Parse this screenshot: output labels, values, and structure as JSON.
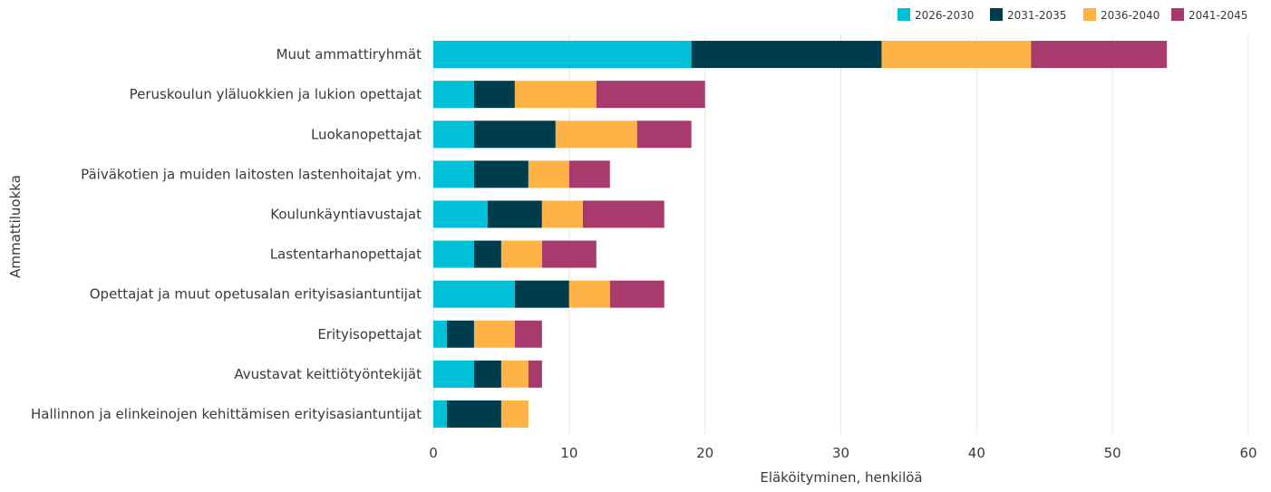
{
  "chart_data": {
    "type": "bar",
    "orientation": "horizontal",
    "stacked": true,
    "title": "",
    "xlabel": "Eläköityminen, henkilöä",
    "ylabel": "Ammattiluokka",
    "xlim": [
      0,
      60
    ],
    "xticks": [
      0,
      10,
      20,
      30,
      40,
      50,
      60
    ],
    "grid": true,
    "legend_position": "top-right",
    "categories": [
      "Muut ammattiryhmät",
      "Peruskoulun yläluokkien ja lukion opettajat",
      "Luokanopettajat",
      "Päiväkotien ja muiden laitosten lastenhoitajat ym.",
      "Koulunkäyntiavustajat",
      "Lastentarhanopettajat",
      "Opettajat ja muut opetusalan erityisasiantuntijat",
      "Erityisopettajat",
      "Avustavat keittiötyöntekijät",
      "Hallinnon ja elinkeinojen kehittämisen erityisasiantuntijat"
    ],
    "series": [
      {
        "name": "2026-2030",
        "color": "#00c0d8",
        "values": [
          19,
          3,
          3,
          3,
          4,
          3,
          6,
          1,
          3,
          1
        ]
      },
      {
        "name": "2031-2035",
        "color": "#003d4c",
        "values": [
          14,
          3,
          6,
          4,
          4,
          2,
          4,
          2,
          2,
          4
        ]
      },
      {
        "name": "2036-2040",
        "color": "#ffb347",
        "values": [
          11,
          6,
          6,
          3,
          3,
          3,
          3,
          3,
          2,
          2
        ]
      },
      {
        "name": "2041-2045",
        "color": "#a83a6e",
        "values": [
          10,
          8,
          4,
          3,
          6,
          4,
          4,
          2,
          1,
          0
        ]
      }
    ]
  }
}
